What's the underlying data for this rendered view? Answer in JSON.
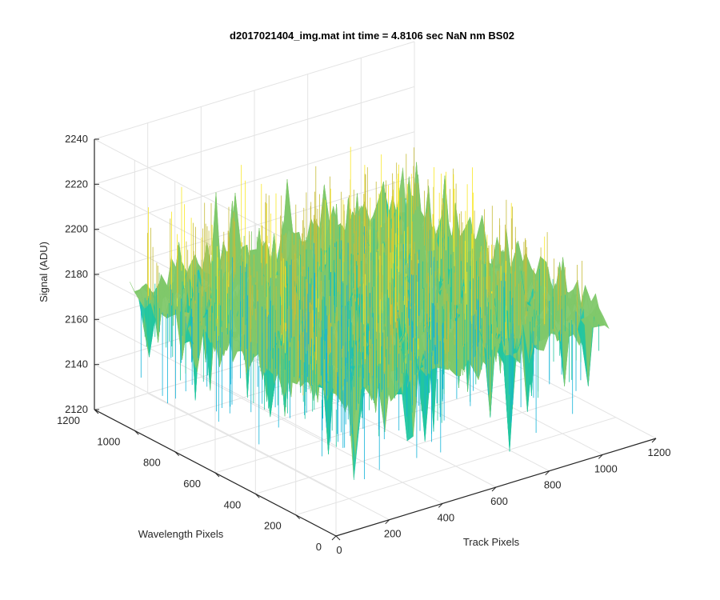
{
  "chart_data": {
    "type": "surface",
    "title": "d2017021404_img.mat int time = 4.8106 sec  NaN nm BS02",
    "xlabel": "Track Pixels",
    "ylabel": "Wavelength Pixels",
    "zlabel": "Signal (ADU)",
    "xlim": [
      0,
      1200
    ],
    "ylim": [
      0,
      1200
    ],
    "zlim": [
      2120,
      2240
    ],
    "xticks": [
      "0",
      "200",
      "400",
      "600",
      "800",
      "1000",
      "1200"
    ],
    "yticks": [
      "0",
      "200",
      "400",
      "600",
      "800",
      "1000",
      "1200"
    ],
    "zticks": [
      "2120",
      "2140",
      "2160",
      "2180",
      "2200",
      "2220",
      "2240"
    ],
    "data_extent": {
      "x": [
        0,
        1024
      ],
      "y": [
        0,
        1024
      ]
    },
    "signal_mean": 2180,
    "signal_range": [
      2120,
      2235
    ],
    "colormap": [
      "#3e26a8",
      "#2f7ef6",
      "#12b3d8",
      "#22c6a0",
      "#7fc86a",
      "#c6bc3a",
      "#f9e723"
    ],
    "grid": true
  }
}
